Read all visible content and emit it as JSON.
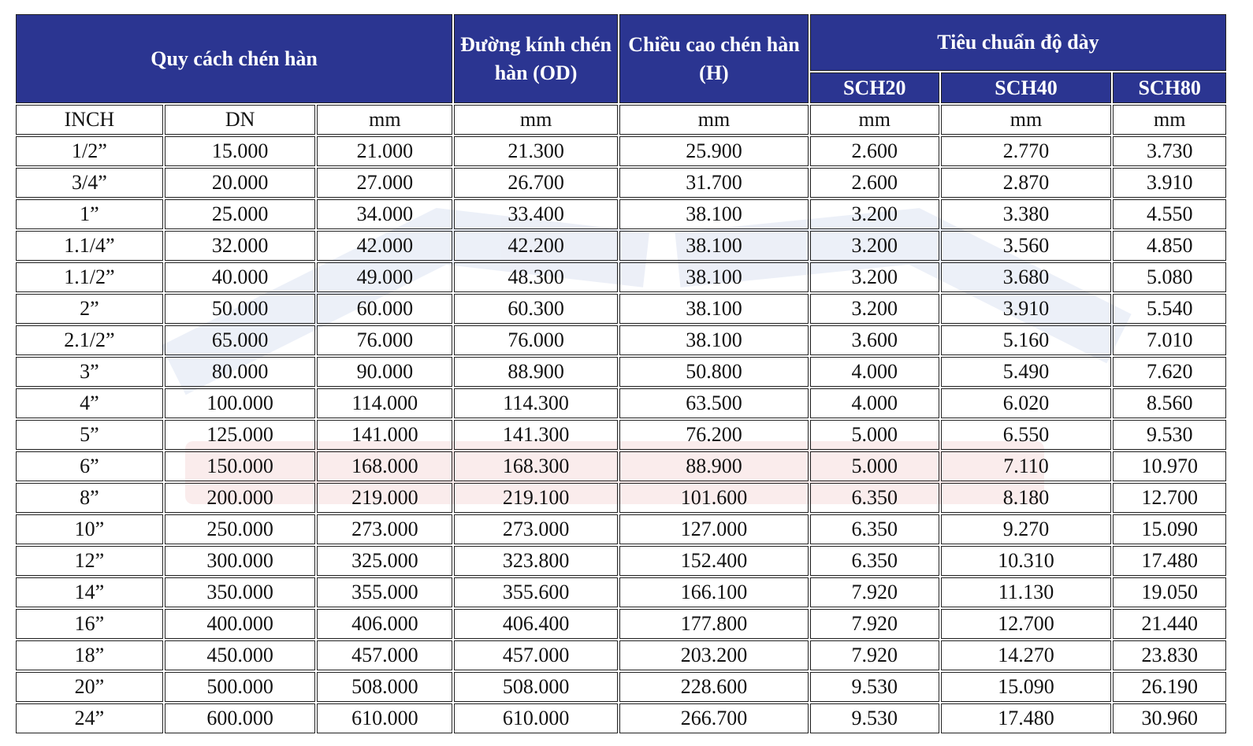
{
  "header": {
    "spec": "Quy cách chén hàn",
    "od": "Đường kính chén hàn (OD)",
    "height": "Chiều cao chén hàn (H)",
    "thickness": "Tiêu chuẩn độ dày",
    "sch": [
      "SCH20",
      "SCH40",
      "SCH80"
    ]
  },
  "units": [
    "INCH",
    "DN",
    "mm",
    "mm",
    "mm",
    "mm",
    "mm",
    "mm"
  ],
  "rows": [
    [
      "1/2”",
      "15.000",
      "21.000",
      "21.300",
      "25.900",
      "2.600",
      "2.770",
      "3.730"
    ],
    [
      "3/4”",
      "20.000",
      "27.000",
      "26.700",
      "31.700",
      "2.600",
      "2.870",
      "3.910"
    ],
    [
      "1”",
      "25.000",
      "34.000",
      "33.400",
      "38.100",
      "3.200",
      "3.380",
      "4.550"
    ],
    [
      "1.1/4”",
      "32.000",
      "42.000",
      "42.200",
      "38.100",
      "3.200",
      "3.560",
      "4.850"
    ],
    [
      "1.1/2”",
      "40.000",
      "49.000",
      "48.300",
      "38.100",
      "3.200",
      "3.680",
      "5.080"
    ],
    [
      "2”",
      "50.000",
      "60.000",
      "60.300",
      "38.100",
      "3.200",
      "3.910",
      "5.540"
    ],
    [
      "2.1/2”",
      "65.000",
      "76.000",
      "76.000",
      "38.100",
      "3.600",
      "5.160",
      "7.010"
    ],
    [
      "3”",
      "80.000",
      "90.000",
      "88.900",
      "50.800",
      "4.000",
      "5.490",
      "7.620"
    ],
    [
      "4”",
      "100.000",
      "114.000",
      "114.300",
      "63.500",
      "4.000",
      "6.020",
      "8.560"
    ],
    [
      "5”",
      "125.000",
      "141.000",
      "141.300",
      "76.200",
      "5.000",
      "6.550",
      "9.530"
    ],
    [
      "6”",
      "150.000",
      "168.000",
      "168.300",
      "88.900",
      "5.000",
      "7.110",
      "10.970"
    ],
    [
      "8”",
      "200.000",
      "219.000",
      "219.100",
      "101.600",
      "6.350",
      "8.180",
      "12.700"
    ],
    [
      "10”",
      "250.000",
      "273.000",
      "273.000",
      "127.000",
      "6.350",
      "9.270",
      "15.090"
    ],
    [
      "12”",
      "300.000",
      "325.000",
      "323.800",
      "152.400",
      "6.350",
      "10.310",
      "17.480"
    ],
    [
      "14”",
      "350.000",
      "355.000",
      "355.600",
      "166.100",
      "7.920",
      "11.130",
      "19.050"
    ],
    [
      "16”",
      "400.000",
      "406.000",
      "406.400",
      "177.800",
      "7.920",
      "12.700",
      "21.440"
    ],
    [
      "18”",
      "450.000",
      "457.000",
      "457.000",
      "203.200",
      "7.920",
      "14.270",
      "23.830"
    ],
    [
      "20”",
      "500.000",
      "508.000",
      "508.000",
      "228.600",
      "9.530",
      "15.090",
      "26.190"
    ],
    [
      "24”",
      "600.000",
      "610.000",
      "610.000",
      "266.700",
      "9.530",
      "17.480",
      "30.960"
    ]
  ]
}
